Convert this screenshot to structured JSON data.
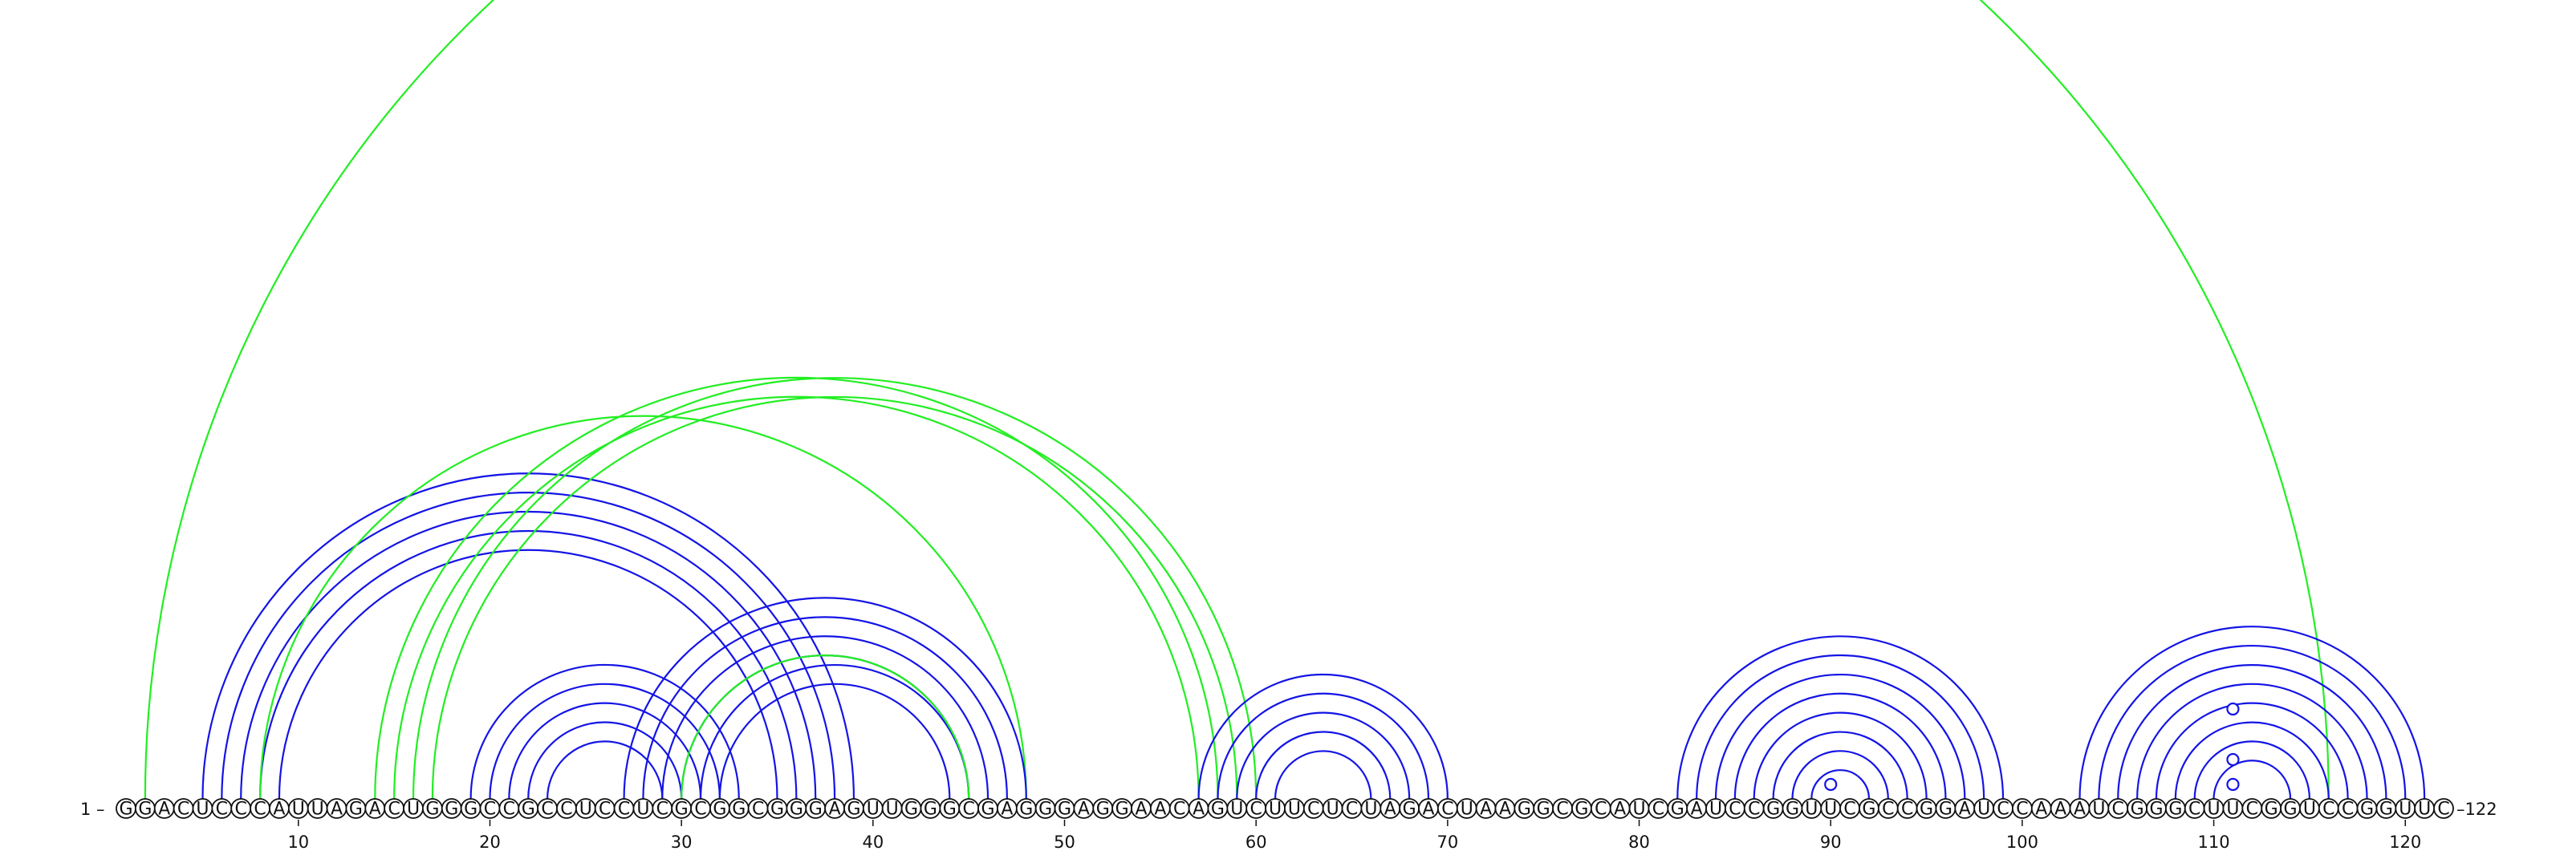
{
  "sequence": "GGACUCCCAUUAGACUGGGCCGCCUCCUCGCGGCGGGAGUUGGGCGAGGGAGGAACAGUCUUCUCUAGACUAAGGCGCAUCGAUCCGGUUCGCCGGAUCCAAAUCGGGCUUCGGUCCGGUUC",
  "start_label": "1 –",
  "end_label": "–122",
  "ticks": [
    10,
    20,
    30,
    40,
    50,
    60,
    70,
    80,
    90,
    100,
    110,
    120
  ],
  "colors": {
    "blue": "#1414e6",
    "green": "#22ee22",
    "nucleotide_outline": "#111111"
  },
  "helices": [
    {
      "color": "green",
      "i": 2,
      "j": 116,
      "len": 1
    },
    {
      "color": "blue",
      "i": 5,
      "j": 39,
      "len": 5
    },
    {
      "color": "green",
      "i": 8,
      "j": 48,
      "len": 1
    },
    {
      "color": "green",
      "i": 14,
      "j": 58,
      "len": 2
    },
    {
      "color": "green",
      "i": 16,
      "j": 60,
      "len": 2
    },
    {
      "color": "blue",
      "i": 19,
      "j": 33,
      "len": 5
    },
    {
      "color": "blue",
      "i": 27,
      "j": 48,
      "len": 4
    },
    {
      "color": "blue",
      "i": 31,
      "j": 45,
      "len": 2
    },
    {
      "color": "green",
      "i": 30,
      "j": 45,
      "len": 1
    },
    {
      "color": "blue",
      "i": 57,
      "j": 70,
      "len": 5
    },
    {
      "color": "blue",
      "i": 82,
      "j": 99,
      "len": 8
    },
    {
      "color": "blue",
      "i": 103,
      "j": 121,
      "len": 8
    }
  ],
  "markers": [
    90,
    111,
    111,
    111
  ]
}
